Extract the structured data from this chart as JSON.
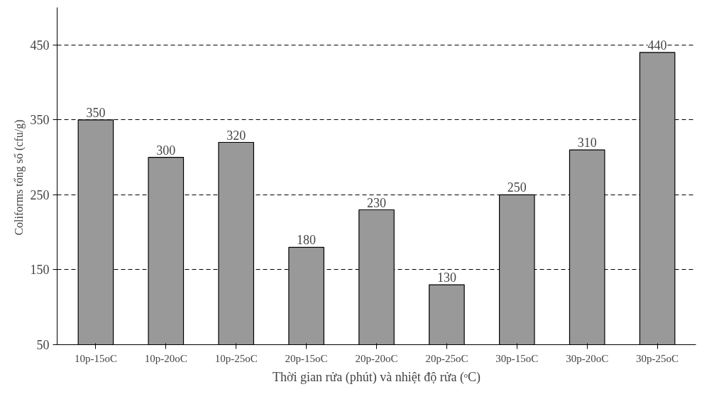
{
  "chart_data": {
    "type": "bar",
    "xlabel": "Thời gian rửa (phút) và nhiệt độ rửa (ᵒC)",
    "ylabel": "Coliforms  tổng số (cfu/g)",
    "categories": [
      "10p-15oC",
      "10p-20oC",
      "10p-25oC",
      "20p-15oC",
      "20p-20oC",
      "20p-25oC",
      "30p-15oC",
      "30p-20oC",
      "30p-25oC"
    ],
    "values": [
      350,
      300,
      320,
      180,
      230,
      130,
      250,
      310,
      440
    ],
    "color": "#999999",
    "ylim": [
      50,
      500
    ],
    "yticks": [
      50,
      150,
      250,
      350,
      450
    ],
    "grid": "y",
    "data_labels": true
  }
}
